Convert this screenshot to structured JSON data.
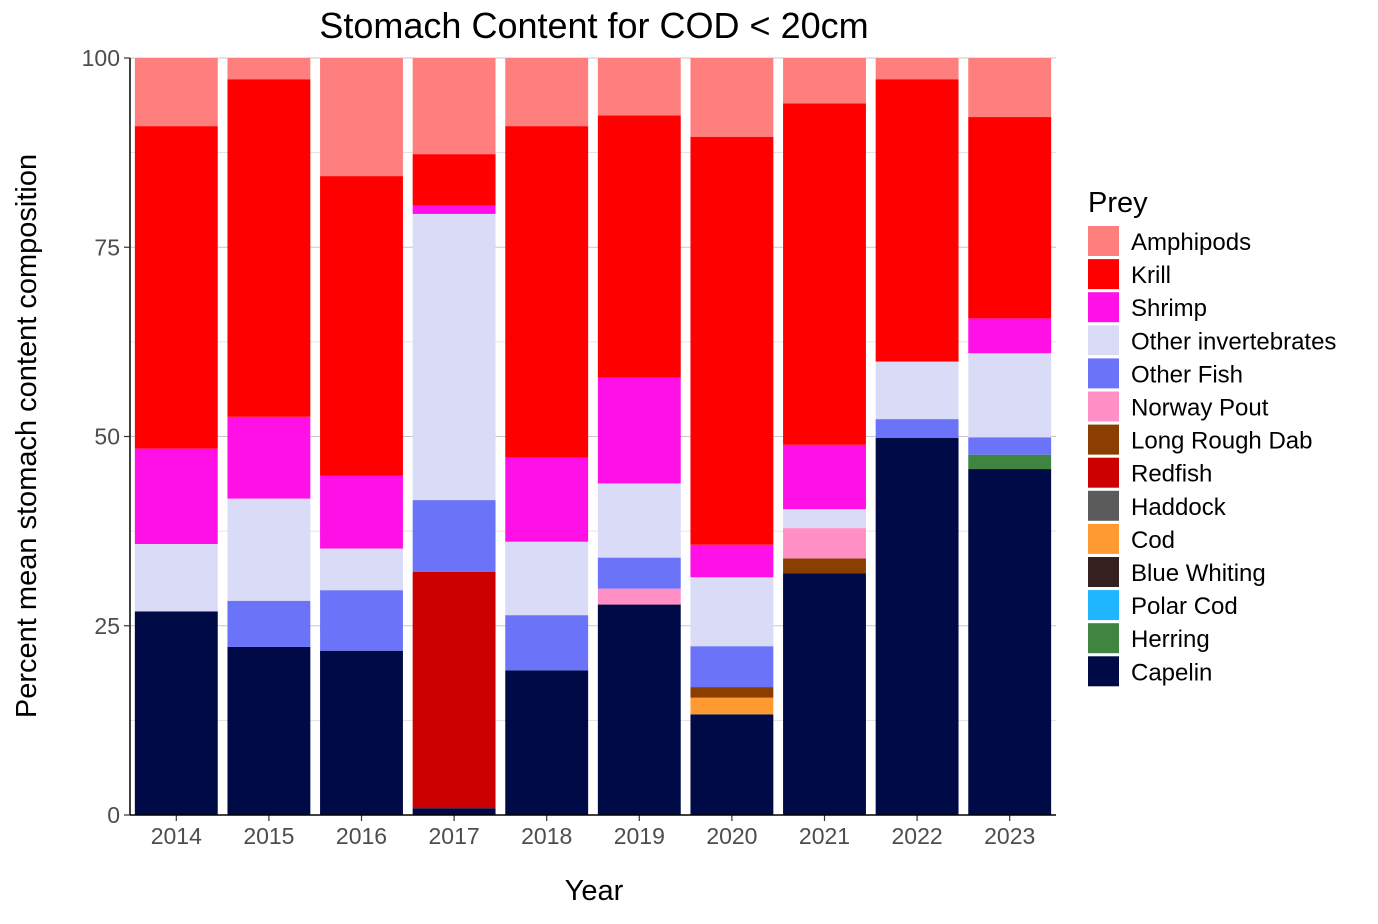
{
  "chart_data": {
    "type": "bar",
    "stacked": true,
    "title": "Stomach Content for COD < 20cm",
    "xlabel": "Year",
    "ylabel": "Percent mean stomach content composition",
    "ylim": [
      0,
      100
    ],
    "yticks": [
      0,
      25,
      50,
      75,
      100
    ],
    "grid": true,
    "legend": {
      "title": "Prey",
      "position": "right"
    },
    "categories": [
      "2014",
      "2015",
      "2016",
      "2017",
      "2018",
      "2019",
      "2020",
      "2021",
      "2022",
      "2023"
    ],
    "series": [
      {
        "name": "Amphipods",
        "color": "#FF7F7F",
        "values": [
          9.0,
          2.8,
          15.6,
          12.7,
          9.0,
          7.6,
          10.4,
          6.0,
          2.8,
          7.8
        ]
      },
      {
        "name": "Krill",
        "color": "#FF0000",
        "values": [
          42.6,
          44.6,
          39.6,
          6.8,
          43.8,
          34.6,
          53.9,
          45.1,
          37.3,
          26.6
        ]
      },
      {
        "name": "Shrimp",
        "color": "#FF10E6",
        "values": [
          12.6,
          10.8,
          9.6,
          1.1,
          11.1,
          14.0,
          4.3,
          8.5,
          0.0,
          4.6
        ]
      },
      {
        "name": "Other invertebrates",
        "color": "#D9DBF7",
        "values": [
          8.9,
          13.5,
          5.5,
          37.8,
          9.7,
          9.8,
          9.1,
          2.5,
          7.6,
          11.1
        ]
      },
      {
        "name": "Other Fish",
        "color": "#6B74F8",
        "values": [
          0.0,
          6.1,
          8.0,
          9.5,
          7.3,
          4.1,
          5.4,
          0.0,
          2.5,
          2.3
        ]
      },
      {
        "name": "Norway Pout",
        "color": "#FF8FC5",
        "values": [
          0.0,
          0.0,
          0.0,
          0.0,
          0.0,
          2.1,
          0.0,
          4.0,
          0.0,
          0.0
        ]
      },
      {
        "name": "Long Rough Dab",
        "color": "#8A3E00",
        "values": [
          0.0,
          0.0,
          0.0,
          0.0,
          0.0,
          0.0,
          1.4,
          2.0,
          0.0,
          0.0
        ]
      },
      {
        "name": "Redfish",
        "color": "#CC0000",
        "values": [
          0.0,
          0.0,
          0.0,
          31.2,
          0.0,
          0.0,
          0.0,
          0.0,
          0.0,
          0.0
        ]
      },
      {
        "name": "Haddock",
        "color": "#5B5B5B",
        "values": [
          0.0,
          0.0,
          0.0,
          0.0,
          0.0,
          0.0,
          0.0,
          0.0,
          0.0,
          0.0
        ]
      },
      {
        "name": "Cod",
        "color": "#FF9A33",
        "values": [
          0.0,
          0.0,
          0.0,
          0.0,
          0.0,
          0.0,
          2.2,
          0.0,
          0.0,
          0.0
        ]
      },
      {
        "name": "Blue Whiting",
        "color": "#33201F",
        "values": [
          0.0,
          0.0,
          0.0,
          0.0,
          0.0,
          0.0,
          0.0,
          0.0,
          0.0,
          0.0
        ]
      },
      {
        "name": "Polar Cod",
        "color": "#1FB6FF",
        "values": [
          0.0,
          0.0,
          0.0,
          0.0,
          0.0,
          0.0,
          0.0,
          0.0,
          0.0,
          0.0
        ]
      },
      {
        "name": "Herring",
        "color": "#3F8540",
        "values": [
          0.0,
          0.0,
          0.0,
          0.0,
          0.0,
          0.0,
          0.0,
          0.0,
          0.0,
          1.9
        ]
      },
      {
        "name": "Capelin",
        "color": "#000A47",
        "values": [
          26.9,
          22.2,
          21.7,
          0.9,
          19.1,
          27.8,
          13.3,
          31.9,
          49.8,
          45.7
        ]
      }
    ]
  }
}
